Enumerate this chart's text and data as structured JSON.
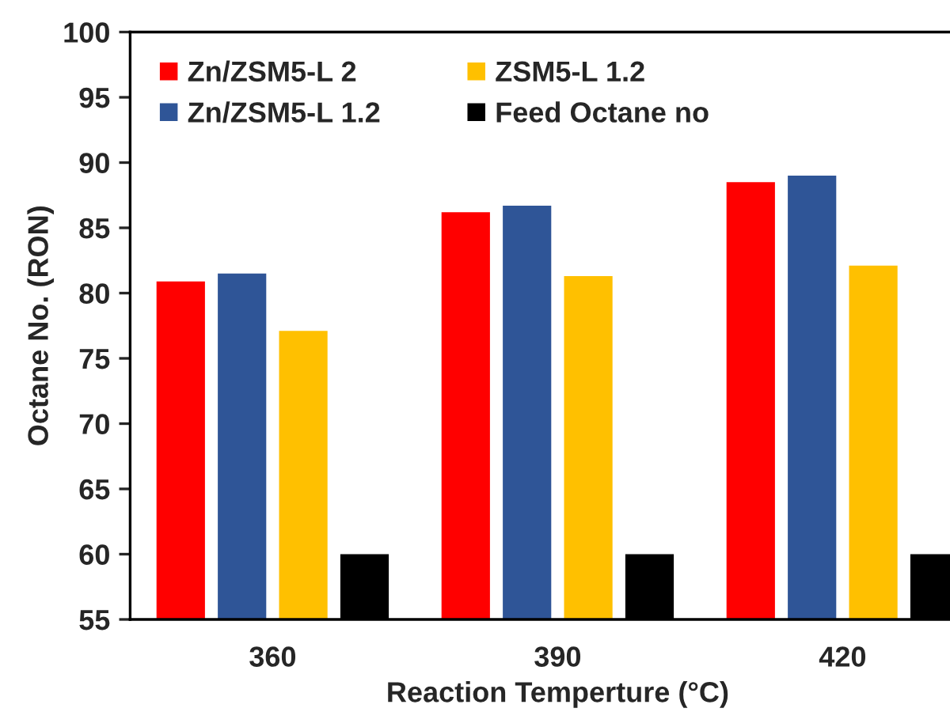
{
  "chart_data": {
    "type": "bar",
    "xlabel": "Reaction Temperture (°C)",
    "ylabel": "Octane No. (RON)",
    "categories": [
      "360",
      "390",
      "420"
    ],
    "series": [
      {
        "name": "Zn/ZSM5-L 2",
        "color": "#ff0000",
        "values": [
          80.9,
          86.2,
          88.5
        ]
      },
      {
        "name": "Zn/ZSM5-L 1.2",
        "color": "#2f5597",
        "values": [
          81.5,
          86.7,
          89.0
        ]
      },
      {
        "name": "ZSM5-L 1.2",
        "color": "#ffc000",
        "values": [
          77.1,
          81.3,
          82.1
        ]
      },
      {
        "name": "Feed Octane no",
        "color": "#000000",
        "values": [
          60,
          60,
          60
        ]
      }
    ],
    "ylim": [
      55,
      100
    ],
    "yticks": [
      55,
      60,
      65,
      70,
      75,
      80,
      85,
      90,
      95,
      100
    ],
    "grid": false,
    "legend": "top left"
  }
}
